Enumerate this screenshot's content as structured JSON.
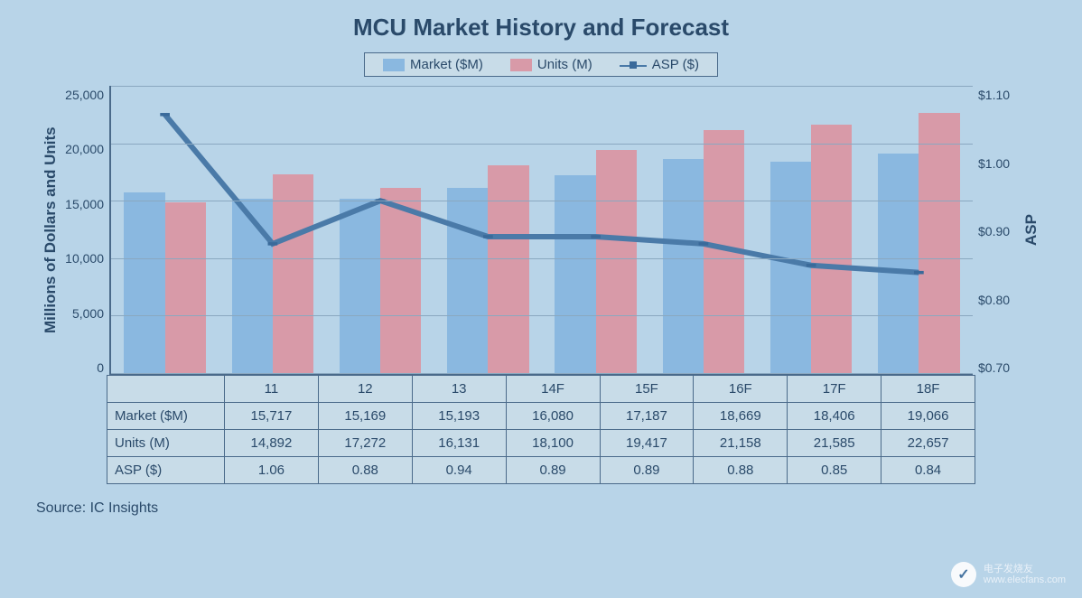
{
  "chart": {
    "title": "MCU Market History and Forecast",
    "title_fontsize": 26,
    "background_color": "#b8d4e8",
    "plot_background_color": "#c8dce8",
    "grid_color": "#8aa8c0",
    "axis_color": "#4a6a8a",
    "text_color": "#2a4a6a",
    "y_left_label": "Millions of Dollars and Units",
    "y_right_label": "ASP",
    "axis_label_fontsize": 17,
    "tick_fontsize": 14,
    "y_left": {
      "min": 0,
      "max": 25000,
      "step": 5000,
      "ticks": [
        "25,000",
        "20,000",
        "15,000",
        "10,000",
        "5,000",
        "0"
      ]
    },
    "y_right": {
      "min": 0.7,
      "max": 1.1,
      "step": 0.1,
      "ticks": [
        "$1.10",
        "$1.00",
        "$0.90",
        "$0.80",
        "$0.70"
      ]
    },
    "categories": [
      "11",
      "12",
      "13",
      "14F",
      "15F",
      "16F",
      "17F",
      "18F"
    ],
    "series": {
      "market": {
        "label": "Market ($M)",
        "type": "bar",
        "color": "#8ab8e0",
        "values": [
          15717,
          15169,
          15193,
          16080,
          17187,
          18669,
          18406,
          19066
        ],
        "axis": "left"
      },
      "units": {
        "label": "Units (M)",
        "type": "bar",
        "color": "#d89aa8",
        "values": [
          14892,
          17272,
          16131,
          18100,
          19417,
          21158,
          21585,
          22657
        ],
        "axis": "left"
      },
      "asp": {
        "label": "ASP ($)",
        "type": "line",
        "color": "#4a7aa8",
        "marker_color": "#3a6a9a",
        "marker_size": 8,
        "line_width": 2,
        "values": [
          1.06,
          0.88,
          0.94,
          0.89,
          0.89,
          0.88,
          0.85,
          0.84
        ],
        "axis": "right"
      }
    },
    "bar_width_pct": 38,
    "legend": {
      "border_color": "#4a6a8a",
      "background_color": "#c8dce8",
      "position": "top-center"
    },
    "table": {
      "rows": [
        {
          "header": "Market ($M)",
          "cells": [
            "15,717",
            "15,169",
            "15,193",
            "16,080",
            "17,187",
            "18,669",
            "18,406",
            "19,066"
          ]
        },
        {
          "header": "Units (M)",
          "cells": [
            "14,892",
            "17,272",
            "16,131",
            "18,100",
            "19,417",
            "21,158",
            "21,585",
            "22,657"
          ]
        },
        {
          "header": "ASP ($)",
          "cells": [
            "1.06",
            "0.88",
            "0.94",
            "0.89",
            "0.89",
            "0.88",
            "0.85",
            "0.84"
          ]
        }
      ],
      "cell_background": "#c8dce8",
      "border_color": "#4a6a8a"
    },
    "source_label": "Source:  IC Insights"
  },
  "watermark": {
    "line1": "电子发烧友",
    "line2": "www.elecfans.com",
    "icon_glyph": "✓"
  }
}
